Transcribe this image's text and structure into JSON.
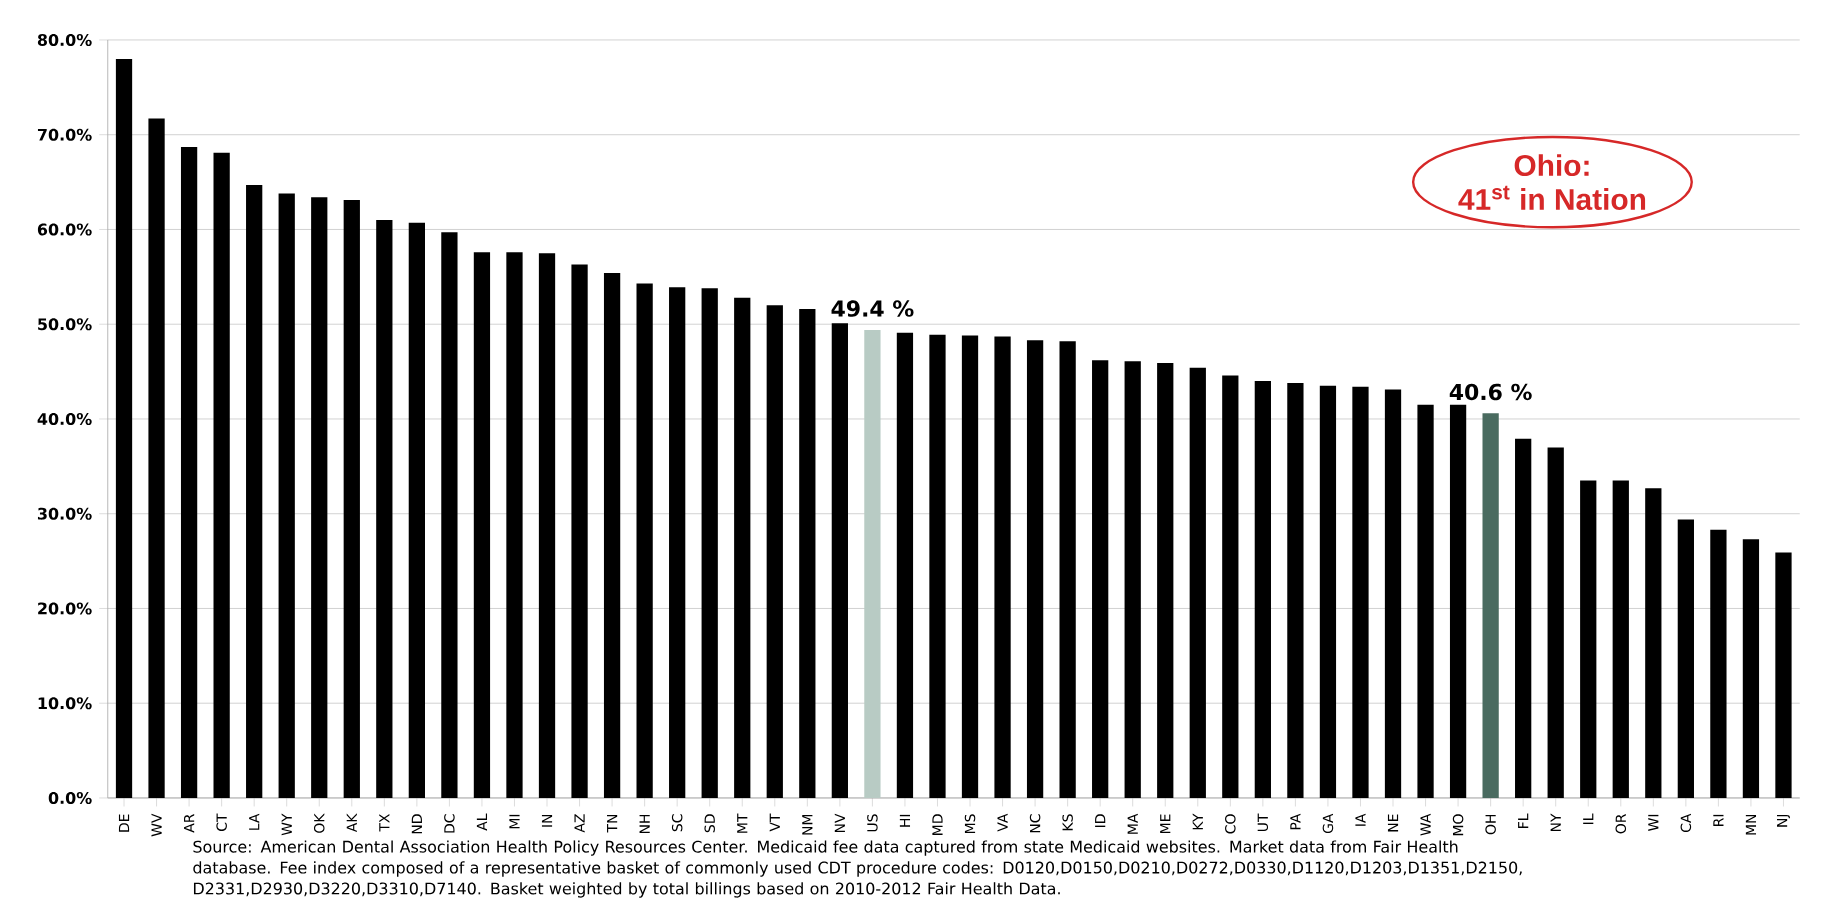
{
  "chart_data": {
    "type": "bar",
    "categories": [
      "DE",
      "WV",
      "AR",
      "CT",
      "LA",
      "WY",
      "OK",
      "AK",
      "TX",
      "ND",
      "DC",
      "AL",
      "MI",
      "IN",
      "AZ",
      "TN",
      "NH",
      "SC",
      "SD",
      "MT",
      "VT",
      "NM",
      "NV",
      "US",
      "HI",
      "MD",
      "MS",
      "VA",
      "NC",
      "KS",
      "ID",
      "MA",
      "ME",
      "KY",
      "CO",
      "UT",
      "PA",
      "GA",
      "IA",
      "NE",
      "WA",
      "MO",
      "OH",
      "FL",
      "NY",
      "IL",
      "OR",
      "WI",
      "CA",
      "RI",
      "MN",
      "NJ"
    ],
    "values": [
      78.0,
      71.7,
      68.7,
      68.1,
      64.7,
      63.8,
      63.4,
      63.1,
      61.0,
      60.7,
      59.7,
      57.6,
      57.6,
      57.5,
      56.3,
      55.4,
      54.3,
      53.9,
      53.8,
      52.8,
      52.0,
      51.6,
      50.1,
      49.4,
      49.1,
      48.9,
      48.8,
      48.7,
      48.3,
      48.2,
      46.2,
      46.1,
      45.9,
      45.4,
      44.6,
      44.0,
      43.8,
      43.5,
      43.4,
      43.1,
      41.5,
      41.5,
      40.6,
      37.9,
      37.0,
      33.5,
      33.5,
      32.7,
      29.4,
      28.3,
      27.3,
      25.9
    ],
    "colors": [
      "#000000",
      "#000000",
      "#000000",
      "#000000",
      "#000000",
      "#000000",
      "#000000",
      "#000000",
      "#000000",
      "#000000",
      "#000000",
      "#000000",
      "#000000",
      "#000000",
      "#000000",
      "#000000",
      "#000000",
      "#000000",
      "#000000",
      "#000000",
      "#000000",
      "#000000",
      "#000000",
      "#b8cbc4",
      "#000000",
      "#000000",
      "#000000",
      "#000000",
      "#000000",
      "#000000",
      "#000000",
      "#000000",
      "#000000",
      "#000000",
      "#000000",
      "#000000",
      "#000000",
      "#000000",
      "#000000",
      "#000000",
      "#000000",
      "#000000",
      "#4a6b60",
      "#000000",
      "#000000",
      "#000000",
      "#000000",
      "#000000",
      "#000000",
      "#000000",
      "#000000",
      "#000000"
    ],
    "value_labels": [
      null,
      null,
      null,
      null,
      null,
      null,
      null,
      null,
      null,
      null,
      null,
      null,
      null,
      null,
      null,
      null,
      null,
      null,
      null,
      null,
      null,
      null,
      null,
      "49.4 %",
      null,
      null,
      null,
      null,
      null,
      null,
      null,
      null,
      null,
      null,
      null,
      null,
      null,
      null,
      null,
      null,
      null,
      null,
      "40.6 %",
      null,
      null,
      null,
      null,
      null,
      null,
      null,
      null,
      null
    ],
    "ylim": [
      0,
      80
    ],
    "yticks": [
      {
        "value": 0,
        "label": "0.0%"
      },
      {
        "value": 10,
        "label": "10.0%"
      },
      {
        "value": 20,
        "label": "20.0%"
      },
      {
        "value": 30,
        "label": "30.0%"
      },
      {
        "value": 40,
        "label": "40.0%"
      },
      {
        "value": 50,
        "label": "50.0%"
      },
      {
        "value": 60,
        "label": "60.0%"
      },
      {
        "value": 70,
        "label": "70.0%"
      },
      {
        "value": 80,
        "label": "80.0%"
      }
    ],
    "grid": "y",
    "annotations": [
      "Ohio:",
      "41$^{st}$ in Nation",
      "Source: American Dental Association Health Policy Resources Center.  Medicaid fee data captured from state Medicaid websites.  Market data from Fair Health database.  Fee index composed of a representative  basket of commonly used CDT procedure codes: D0120,D0150,D0210,D0272,D0330,D1120,D1203,D1351,D2150, D2331,D2930,D3220,D3310,D7140.  Basket  weighted by total billings based on 2010-2012 Fair Health Data."
    ]
  }
}
